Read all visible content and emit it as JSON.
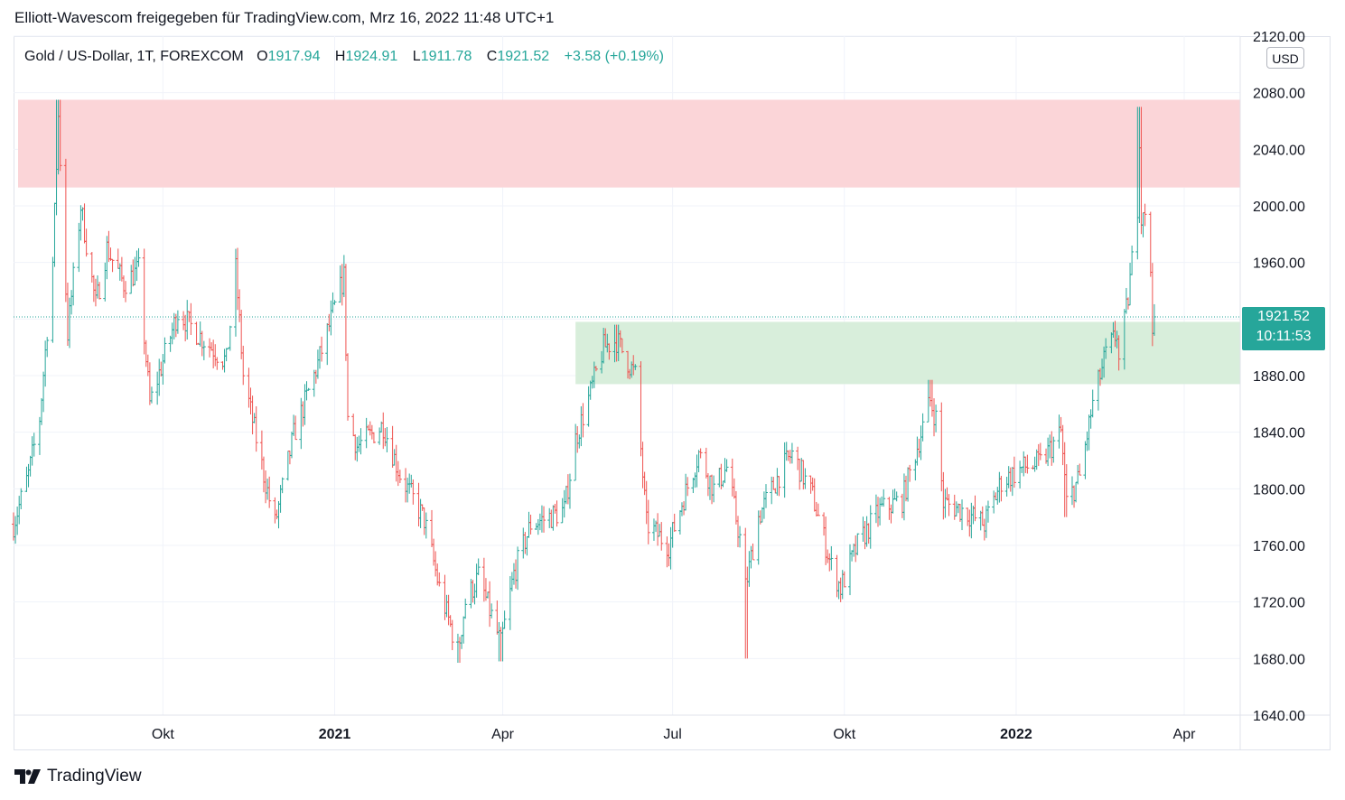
{
  "share_caption": "Elliott-Wavescom freigegeben für TradingView.com, Mrz 16, 2022 11:48 UTC+1",
  "legend": {
    "symbol": "Gold  / US-Dollar, 1T, FOREXCOM",
    "open_label": "O",
    "open": "1917.94",
    "high_label": "H",
    "high": "1924.91",
    "low_label": "L",
    "low": "1911.78",
    "close_label": "C",
    "close": "1921.52",
    "change": "+3.58 (+0.19%)"
  },
  "currency": "USD",
  "last_price": {
    "price": "1921.52",
    "countdown": "10:11:53"
  },
  "brand": {
    "name": "TradingView",
    "icon": "tradingview-logo-icon"
  },
  "colors": {
    "up": "#26a69a",
    "down": "#ef5350",
    "resistance_zone": "#fbd5d8",
    "support_zone": "#d8eedb",
    "grid": "#f0f3fa",
    "price_tag": "#26a69a"
  },
  "chart_data": {
    "type": "ohlc",
    "title": "",
    "y_axis": {
      "ticks": [
        "2120.00",
        "2080.00",
        "2040.00",
        "2000.00",
        "1960.00",
        "1920.00",
        "1880.00",
        "1840.00",
        "1800.00",
        "1760.00",
        "1720.00",
        "1680.00",
        "1640.00"
      ],
      "range": [
        1640,
        2120
      ],
      "side": "right"
    },
    "x_axis": {
      "labels": [
        {
          "text": "Okt",
          "bold": false,
          "date": "2020-10-01"
        },
        {
          "text": "2021",
          "bold": true,
          "date": "2021-01-01"
        },
        {
          "text": "Apr",
          "bold": false,
          "date": "2021-04-01"
        },
        {
          "text": "Jul",
          "bold": false,
          "date": "2021-07-01"
        },
        {
          "text": "Okt",
          "bold": false,
          "date": "2021-10-01"
        },
        {
          "text": "2022",
          "bold": true,
          "date": "2022-01-01"
        },
        {
          "text": "Apr",
          "bold": false,
          "date": "2022-04-01"
        }
      ],
      "range": [
        "2020-07-13",
        "2022-05-01"
      ]
    },
    "zones": [
      {
        "name": "resistance",
        "from": "2020-07-13",
        "to": "2022-05-01",
        "low": 2013,
        "high": 2075
      },
      {
        "name": "support",
        "from": "2021-05-10",
        "to": "2022-05-01",
        "low": 1874,
        "high": 1918
      }
    ],
    "last_price_line": 1921.52,
    "anchors": [
      [
        "2020-07-13",
        1775
      ],
      [
        "2020-07-21",
        1810
      ],
      [
        "2020-07-27",
        1850
      ],
      [
        "2020-08-03",
        1960
      ],
      [
        "2020-08-06",
        2063
      ],
      [
        "2020-08-11",
        1910
      ],
      [
        "2020-08-18",
        2000
      ],
      [
        "2020-08-26",
        1930
      ],
      [
        "2020-09-01",
        1970
      ],
      [
        "2020-09-10",
        1945
      ],
      [
        "2020-09-18",
        1955
      ],
      [
        "2020-09-24",
        1860
      ],
      [
        "2020-10-09",
        1925
      ],
      [
        "2020-10-23",
        1905
      ],
      [
        "2020-11-04",
        1890
      ],
      [
        "2020-11-09",
        1955
      ],
      [
        "2020-11-13",
        1880
      ],
      [
        "2020-11-24",
        1810
      ],
      [
        "2020-11-30",
        1775
      ],
      [
        "2020-12-10",
        1838
      ],
      [
        "2020-12-21",
        1880
      ],
      [
        "2021-01-06",
        1950
      ],
      [
        "2021-01-08",
        1850
      ],
      [
        "2021-01-13",
        1830
      ],
      [
        "2021-01-27",
        1845
      ],
      [
        "2021-02-05",
        1810
      ],
      [
        "2021-02-18",
        1778
      ],
      [
        "2021-02-26",
        1730
      ],
      [
        "2021-03-08",
        1685
      ],
      [
        "2021-03-12",
        1720
      ],
      [
        "2021-03-19",
        1738
      ],
      [
        "2021-03-31",
        1690
      ],
      [
        "2021-04-07",
        1740
      ],
      [
        "2021-04-16",
        1775
      ],
      [
        "2021-04-26",
        1780
      ],
      [
        "2021-05-04",
        1785
      ],
      [
        "2021-05-10",
        1835
      ],
      [
        "2021-05-18",
        1868
      ],
      [
        "2021-05-25",
        1900
      ],
      [
        "2021-06-01",
        1905
      ],
      [
        "2021-06-11",
        1880
      ],
      [
        "2021-06-17",
        1775
      ],
      [
        "2021-06-29",
        1760
      ],
      [
        "2021-07-06",
        1790
      ],
      [
        "2021-07-15",
        1825
      ],
      [
        "2021-07-23",
        1800
      ],
      [
        "2021-07-30",
        1815
      ],
      [
        "2021-08-06",
        1765
      ],
      [
        "2021-08-09",
        1730
      ],
      [
        "2021-08-16",
        1780
      ],
      [
        "2021-08-27",
        1810
      ],
      [
        "2021-09-03",
        1825
      ],
      [
        "2021-09-14",
        1795
      ],
      [
        "2021-09-24",
        1745
      ],
      [
        "2021-09-29",
        1730
      ],
      [
        "2021-10-08",
        1760
      ],
      [
        "2021-10-20",
        1785
      ],
      [
        "2021-11-01",
        1792
      ],
      [
        "2021-11-08",
        1825
      ],
      [
        "2021-11-16",
        1862
      ],
      [
        "2021-11-19",
        1850
      ],
      [
        "2021-11-23",
        1790
      ],
      [
        "2021-12-03",
        1785
      ],
      [
        "2021-12-15",
        1775
      ],
      [
        "2021-12-24",
        1805
      ],
      [
        "2022-01-05",
        1815
      ],
      [
        "2022-01-14",
        1818
      ],
      [
        "2022-01-25",
        1840
      ],
      [
        "2022-01-28",
        1790
      ],
      [
        "2022-02-04",
        1808
      ],
      [
        "2022-02-11",
        1860
      ],
      [
        "2022-02-18",
        1895
      ],
      [
        "2022-02-24",
        1910
      ],
      [
        "2022-02-25",
        1890
      ],
      [
        "2022-03-02",
        1935
      ],
      [
        "2022-03-07",
        2000
      ],
      [
        "2022-03-08",
        2050
      ],
      [
        "2022-03-09",
        1990
      ],
      [
        "2022-03-10",
        2000
      ],
      [
        "2022-03-14",
        1955
      ],
      [
        "2022-03-15",
        1918
      ],
      [
        "2022-03-16",
        1921.52
      ]
    ],
    "key_highs": [
      [
        "2020-08-06",
        2075
      ],
      [
        "2021-01-06",
        1959
      ],
      [
        "2021-06-01",
        1916
      ],
      [
        "2021-11-16",
        1877
      ],
      [
        "2022-03-08",
        2070
      ]
    ],
    "key_lows": [
      [
        "2021-03-08",
        1677
      ],
      [
        "2021-03-31",
        1678
      ],
      [
        "2021-08-09",
        1680
      ],
      [
        "2021-09-29",
        1722
      ],
      [
        "2022-01-28",
        1780
      ]
    ]
  }
}
